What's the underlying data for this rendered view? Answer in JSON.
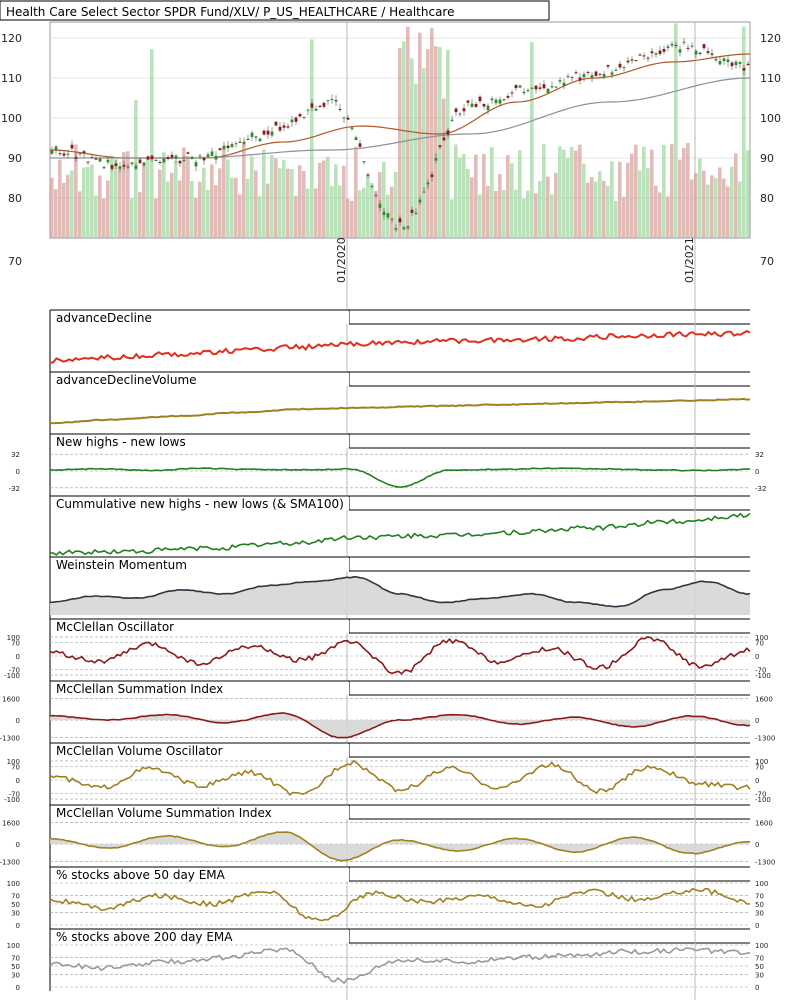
{
  "chart_data": [
    {
      "type": "candlestick",
      "title": "Health Care Select Sector SPDR Fund/XLV/ P_US_HEALTHCARE / Healthcare",
      "ylim": [
        70,
        124
      ],
      "yticks": [
        70,
        80,
        90,
        100,
        110,
        120
      ],
      "xticks": [
        "01/2020",
        "01/2021"
      ],
      "series": [
        {
          "name": "",
          "kind": "price",
          "x": [
            "2019-03",
            "2019-06",
            "2019-09",
            "2019-12",
            "2020-02",
            "2020-03",
            "2020-06",
            "2020-09",
            "2020-12",
            "2021-03",
            "2021-05"
          ],
          "values": [
            92,
            88,
            90,
            96,
            104,
            73,
            103,
            108,
            112,
            118,
            113
          ]
        },
        {
          "name": "",
          "kind": "sma",
          "color": "#b05a2a",
          "x": [
            "2019-03",
            "2019-06",
            "2019-09",
            "2019-12",
            "2020-02",
            "2020-05",
            "2020-09",
            "2020-12",
            "2021-03",
            "2021-05"
          ],
          "values": [
            92,
            90,
            90,
            94,
            98,
            96,
            104,
            110,
            114,
            116
          ]
        },
        {
          "name": "",
          "kind": "sma",
          "color": "#909090",
          "x": [
            "2019-03",
            "2019-09",
            "2020-01",
            "2020-06",
            "2020-12",
            "2021-05"
          ],
          "values": [
            90,
            90,
            92,
            96,
            104,
            110
          ]
        }
      ],
      "volume": true
    },
    {
      "type": "line",
      "title": "advanceDecline",
      "color": "#e03020",
      "values": [
        -10,
        -5,
        0,
        5,
        10,
        15,
        18,
        20,
        22,
        25,
        28,
        30
      ],
      "ylim": [
        -20,
        40
      ]
    },
    {
      "type": "line",
      "title": "advanceDeclineVolume",
      "color": "#a08020",
      "values": [
        -10,
        -5,
        0,
        5,
        10,
        12,
        14,
        16,
        18,
        20,
        22,
        24
      ],
      "ylim": [
        -20,
        40
      ]
    },
    {
      "type": "line",
      "title": "New highs - new lows",
      "color": "#208020",
      "yticks": [
        -32,
        0,
        32
      ],
      "values": [
        2,
        4,
        1,
        5,
        3,
        2,
        4,
        -30,
        2,
        3,
        5,
        4,
        2,
        1,
        3
      ],
      "ylim": [
        -40,
        40
      ]
    },
    {
      "type": "line",
      "title": "Cummulative new highs - new lows (& SMA100)",
      "color": "#208020",
      "values": [
        0,
        10,
        30,
        60,
        100,
        110,
        130,
        160,
        200,
        240
      ],
      "ylim": [
        0,
        260
      ]
    },
    {
      "type": "area",
      "title": "Weinstein Momentum",
      "color": "#333344",
      "values": [
        0.3,
        0.45,
        0.4,
        0.6,
        0.5,
        0.7,
        0.8,
        0.9,
        0.5,
        0.3,
        0.4,
        0.5,
        0.3,
        0.2,
        0.6,
        0.8,
        0.5
      ],
      "ylim": [
        0,
        1
      ]
    },
    {
      "type": "line",
      "title": "McClellan Oscillator",
      "color": "#8b1a1a",
      "yticks": [
        -100,
        -70,
        0,
        70,
        100
      ],
      "values": [
        20,
        -30,
        60,
        -40,
        50,
        -20,
        70,
        -90,
        80,
        -30,
        40,
        -60,
        90,
        -50,
        30
      ],
      "ylim": [
        -110,
        110
      ]
    },
    {
      "type": "area",
      "title": "McClellan Summation Index",
      "color": "#8b1a1a",
      "yticks": [
        -1300,
        0,
        1600
      ],
      "values": [
        300,
        0,
        400,
        -200,
        500,
        -1300,
        0,
        400,
        -300,
        200,
        -500,
        300,
        -400
      ],
      "ylim": [
        -1400,
        1700
      ]
    },
    {
      "type": "line",
      "title": "McClellan Volume Oscillator",
      "color": "#a08020",
      "yticks": [
        -100,
        -70,
        0,
        70,
        100
      ],
      "values": [
        20,
        -40,
        60,
        -30,
        40,
        -80,
        90,
        -50,
        60,
        -40,
        80,
        -60,
        70,
        -20,
        -40
      ],
      "ylim": [
        -110,
        110
      ]
    },
    {
      "type": "area",
      "title": "McClellan Volume Summation Index",
      "color": "#a08020",
      "yticks": [
        -1300,
        0,
        1600
      ],
      "values": [
        400,
        -300,
        600,
        -200,
        900,
        -1200,
        300,
        -500,
        400,
        -600,
        500,
        -700,
        200
      ],
      "ylim": [
        -1400,
        1700
      ]
    },
    {
      "type": "line",
      "title": "% stocks above 50 day EMA",
      "color": "#a08020",
      "yticks": [
        0,
        30,
        50,
        70,
        100
      ],
      "values": [
        60,
        40,
        70,
        50,
        80,
        10,
        75,
        55,
        70,
        45,
        80,
        60,
        85,
        55
      ],
      "ylim": [
        0,
        100
      ]
    },
    {
      "type": "line",
      "title": "% stocks above 200 day EMA",
      "color": "#999999",
      "yticks": [
        0,
        30,
        50,
        70,
        100
      ],
      "values": [
        55,
        45,
        60,
        70,
        90,
        15,
        65,
        60,
        70,
        75,
        85,
        88,
        80
      ],
      "ylim": [
        0,
        100
      ]
    }
  ]
}
